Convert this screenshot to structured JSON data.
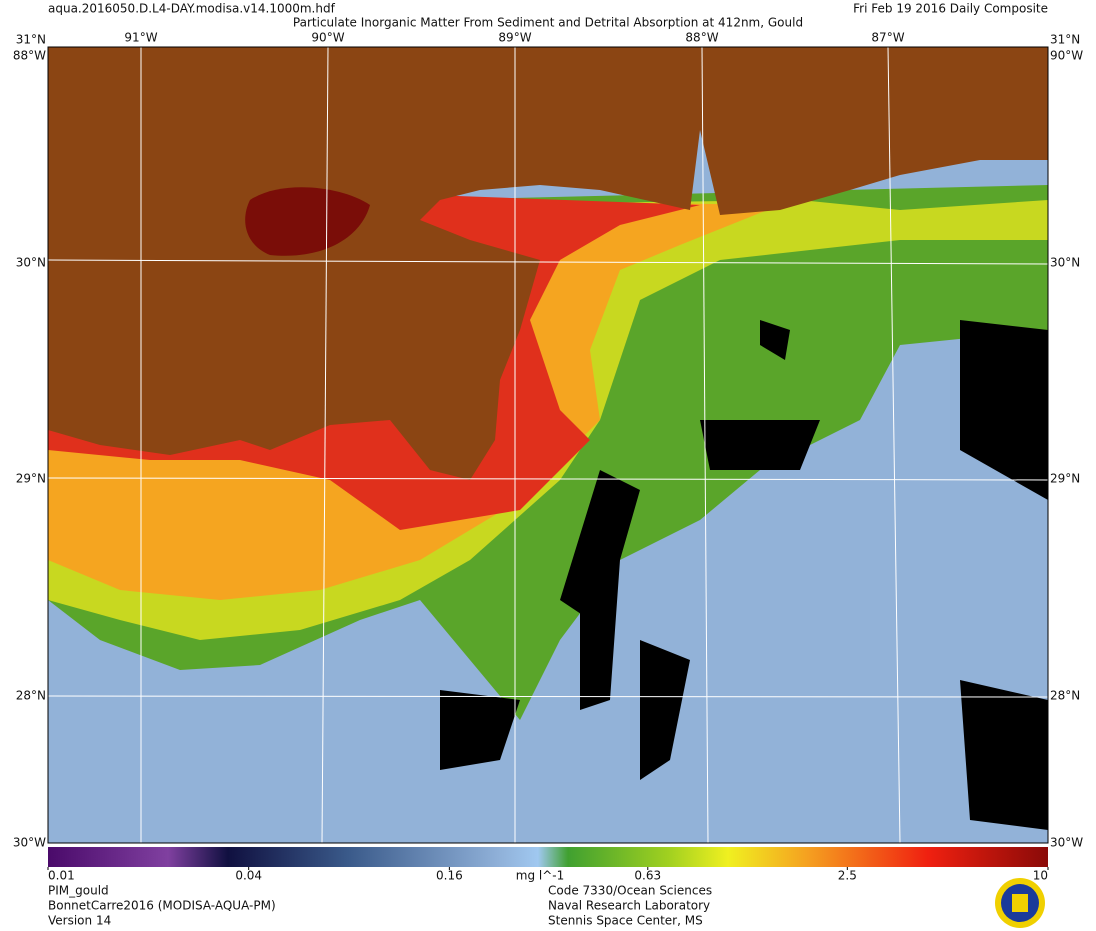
{
  "header": {
    "file": "aqua.2016050.D.L4-DAY.modisa.v14.1000m.hdf",
    "title": "Particulate Inorganic Matter From Sediment and Detrital Absorption at 412nm, Gould",
    "date": "Fri Feb 19 2016 Daily Composite"
  },
  "map": {
    "lon_labels": [
      "91°W",
      "90°W",
      "89°W",
      "88°W",
      "87°W"
    ],
    "lat_labels": [
      "31°N",
      "30°N",
      "29°N",
      "28°N"
    ],
    "corner_labels": [
      "88°W",
      "90°W",
      "30°W",
      "30°W"
    ]
  },
  "colorbar": {
    "lim": [
      0.01,
      10
    ],
    "log": true,
    "ticks": [
      0.01,
      0.04,
      0.16,
      0.63,
      2.5,
      10
    ],
    "unit": "mg l^-1"
  },
  "footer": {
    "left": [
      "PIM_gould",
      "BonnetCarre2016 (MODISA-AQUA-PM)",
      "Version 14"
    ],
    "center": [
      "Code 7330/Ocean Sciences",
      "Naval Research Laboratory",
      "Stennis Space Center, MS"
    ]
  }
}
